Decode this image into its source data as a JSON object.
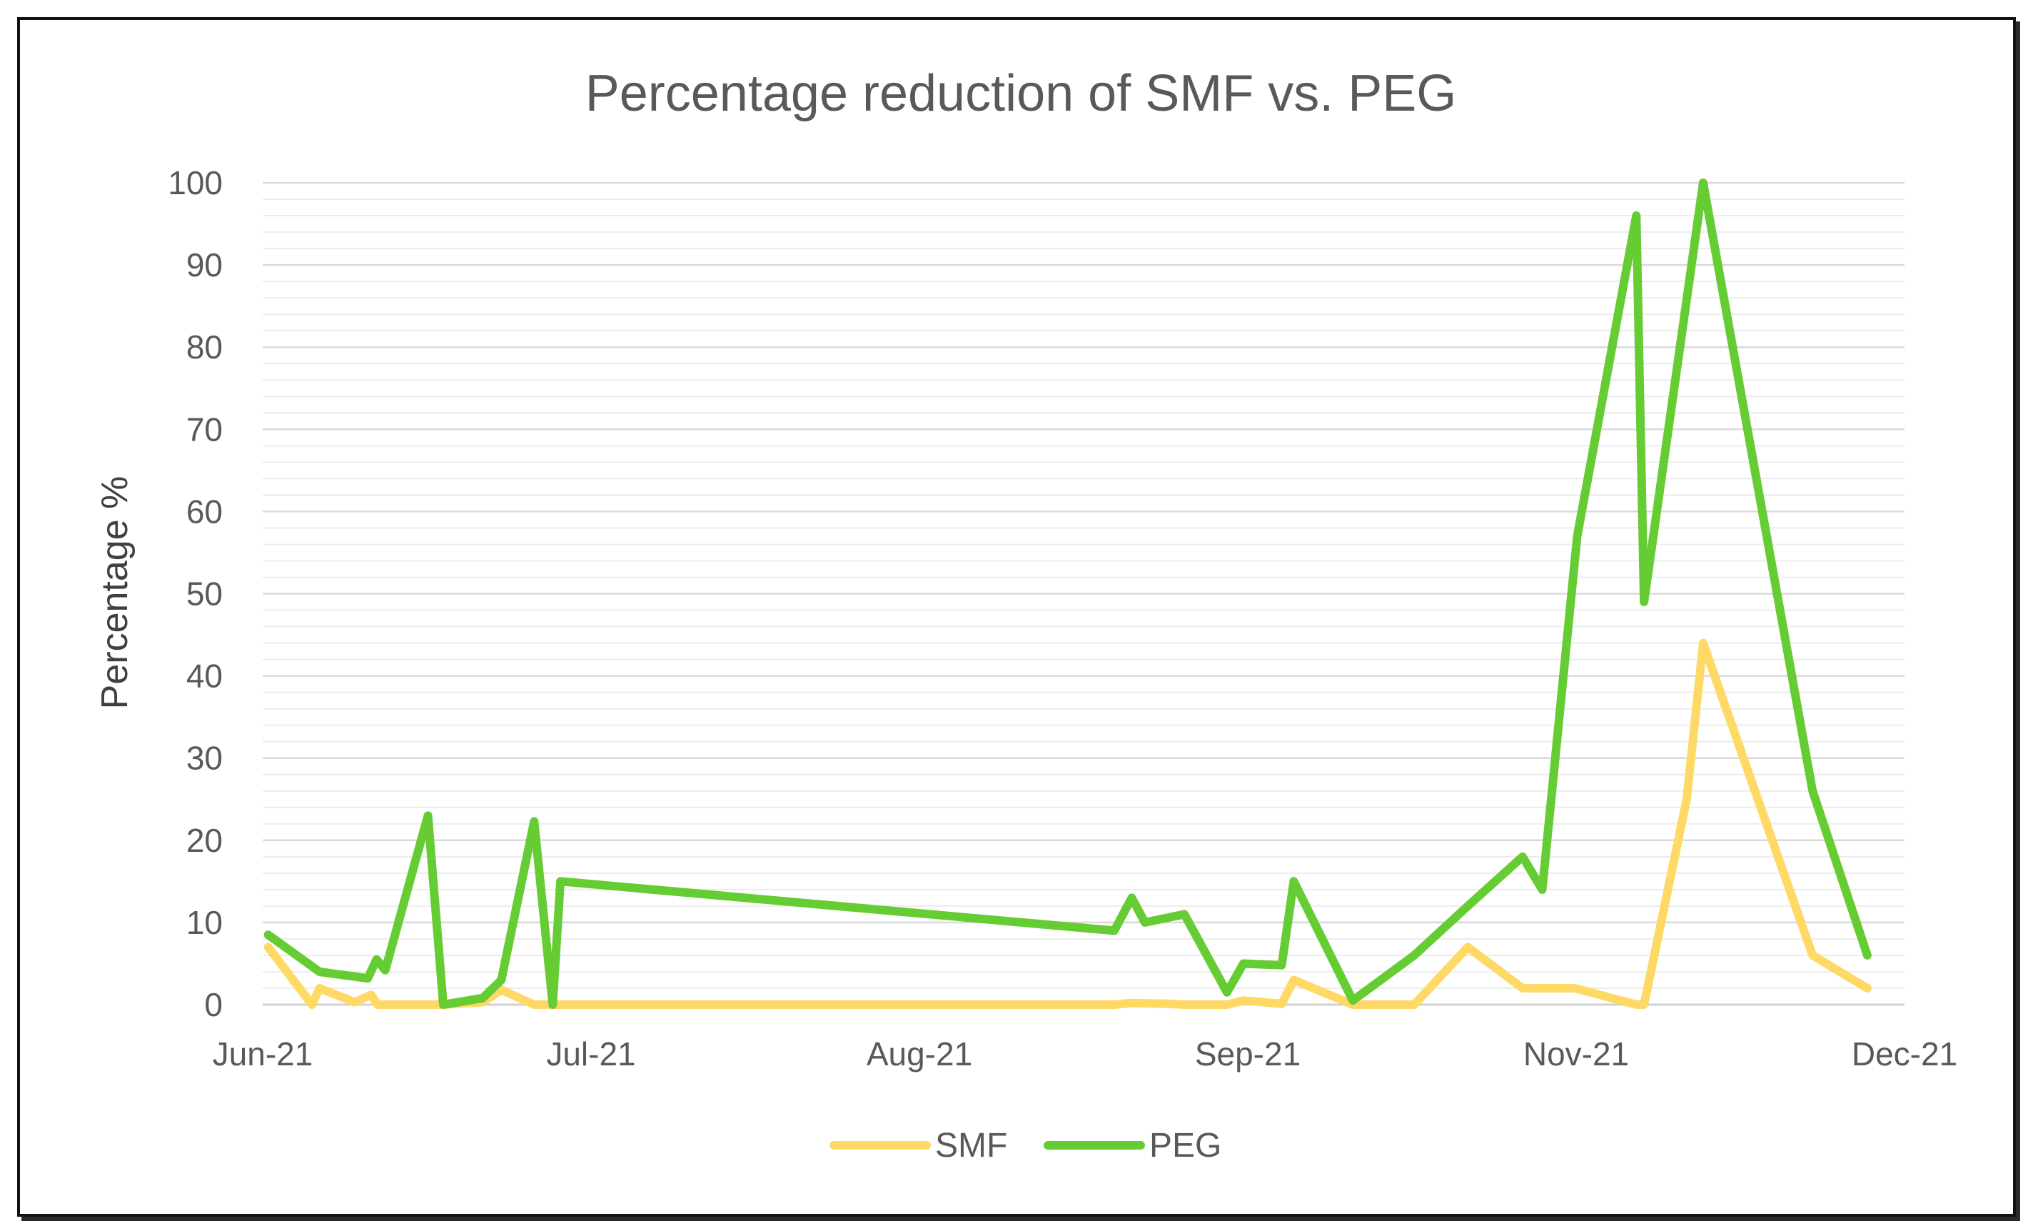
{
  "chart_data": {
    "type": "line",
    "title": "Percentage reduction of SMF vs. PEG",
    "xlabel": "",
    "ylabel": "Percentage %",
    "ylim": [
      0,
      100
    ],
    "yticks": [
      0,
      10,
      20,
      30,
      40,
      50,
      60,
      70,
      80,
      90,
      100
    ],
    "xticks": [
      {
        "day": 0,
        "label": "Jun-21"
      },
      {
        "day": 30,
        "label": "Jul-21"
      },
      {
        "day": 60,
        "label": "Aug-21"
      },
      {
        "day": 90,
        "label": "Sep-21"
      },
      {
        "day": 120,
        "label": "Nov-21"
      },
      {
        "day": 150,
        "label": "Dec-21"
      }
    ],
    "x_units": "days since Jun-21",
    "grid": true,
    "legend": "bottom-center",
    "series": [
      {
        "name": "SMF",
        "color": "#FFD966",
        "points": [
          [
            0.5,
            7
          ],
          [
            4.5,
            0
          ],
          [
            5.2,
            2
          ],
          [
            8.4,
            0.3
          ],
          [
            9.9,
            1.2
          ],
          [
            10.5,
            0
          ],
          [
            15.1,
            0
          ],
          [
            16.5,
            0
          ],
          [
            20.1,
            0.3
          ],
          [
            21.8,
            1.8
          ],
          [
            24.8,
            0
          ],
          [
            26.5,
            0
          ],
          [
            77.8,
            0
          ],
          [
            79.4,
            0.2
          ],
          [
            82.6,
            0.1
          ],
          [
            84.2,
            0
          ],
          [
            88.1,
            0
          ],
          [
            89.6,
            0.5
          ],
          [
            93.1,
            0.1
          ],
          [
            94.2,
            3
          ],
          [
            99.6,
            0
          ],
          [
            105.2,
            0
          ],
          [
            110.1,
            7
          ],
          [
            115.1,
            2
          ],
          [
            119.9,
            2
          ],
          [
            125.5,
            0
          ],
          [
            126.2,
            0
          ],
          [
            130.1,
            25
          ],
          [
            131.6,
            44
          ],
          [
            141.6,
            6
          ],
          [
            146.6,
            2
          ]
        ]
      },
      {
        "name": "PEG",
        "color": "#66CC33",
        "points": [
          [
            0.5,
            8.5
          ],
          [
            5.2,
            4
          ],
          [
            9.6,
            3.2
          ],
          [
            10.4,
            5.5
          ],
          [
            11.2,
            4.2
          ],
          [
            15.1,
            23
          ],
          [
            16.5,
            0
          ],
          [
            20.1,
            0.8
          ],
          [
            21.8,
            3
          ],
          [
            24.8,
            22.3
          ],
          [
            26.5,
            0
          ],
          [
            27.2,
            15
          ],
          [
            77.8,
            9
          ],
          [
            79.4,
            13
          ],
          [
            80.6,
            10
          ],
          [
            84.2,
            11
          ],
          [
            88.1,
            1.5
          ],
          [
            89.6,
            5
          ],
          [
            93.1,
            4.8
          ],
          [
            94.2,
            15
          ],
          [
            99.6,
            0.5
          ],
          [
            105.2,
            6
          ],
          [
            110.1,
            12
          ],
          [
            115.1,
            18
          ],
          [
            116.9,
            14
          ],
          [
            120.1,
            57
          ],
          [
            125.5,
            96
          ],
          [
            126.2,
            49
          ],
          [
            131.6,
            100
          ],
          [
            141.6,
            26
          ],
          [
            146.6,
            6
          ]
        ]
      }
    ]
  }
}
